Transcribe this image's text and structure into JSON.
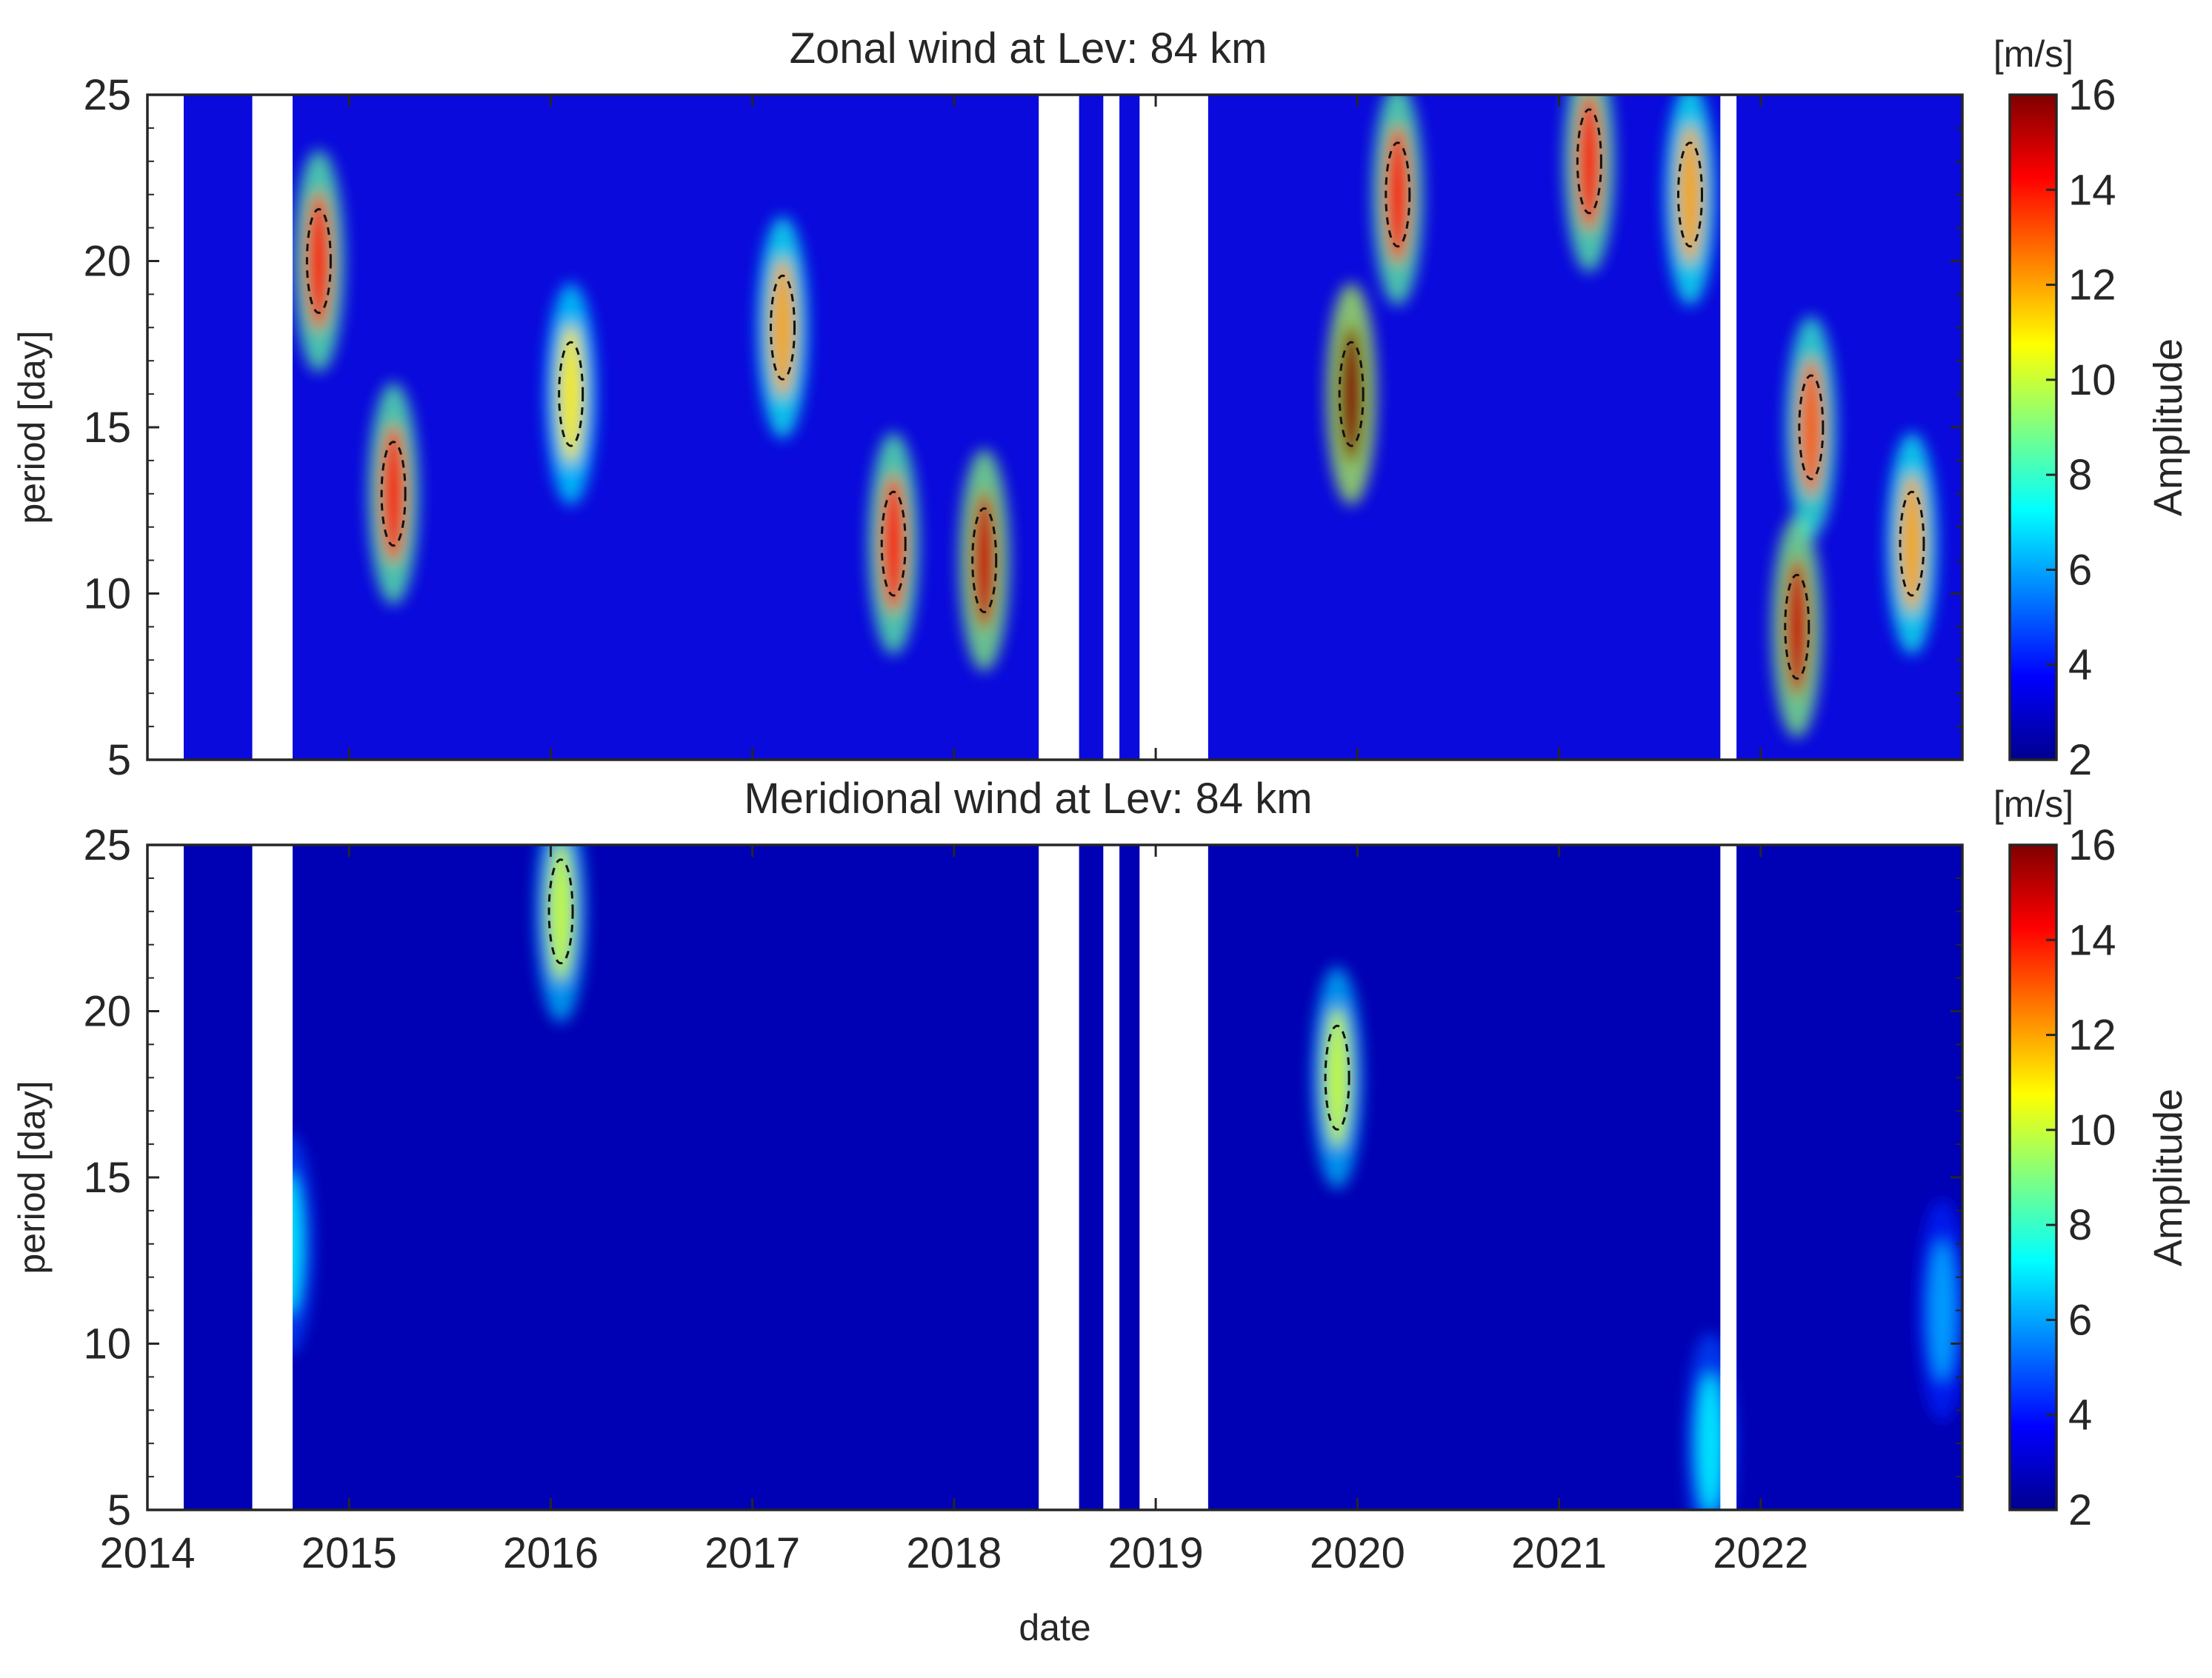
{
  "chart_data": [
    {
      "type": "heatmap",
      "title": "Zonal wind at Lev: 84 km",
      "xlabel": "",
      "ylabel": "period [day]",
      "xlim": [
        2014.0,
        2023.0
      ],
      "ylim": [
        5,
        25
      ],
      "yticks": [
        "5",
        "10",
        "15",
        "20",
        "25"
      ],
      "xticks": [],
      "colorbar": {
        "label": "Amplitude",
        "unit": "[m/s]",
        "range": [
          2,
          16
        ],
        "ticks": [
          "2",
          "4",
          "6",
          "8",
          "10",
          "12",
          "14",
          "16"
        ],
        "colormap": "jet"
      },
      "data_gaps": [
        [
          2014.0,
          2014.18
        ],
        [
          2014.52,
          2014.72
        ],
        [
          2018.42,
          2018.62
        ],
        [
          2018.74,
          2018.82
        ],
        [
          2018.92,
          2019.26
        ],
        [
          2021.8,
          2021.88
        ]
      ],
      "hotspots": [
        {
          "date": 2014.85,
          "period": 20,
          "amplitude": 14
        },
        {
          "date": 2015.22,
          "period": 13,
          "amplitude": 14
        },
        {
          "date": 2016.1,
          "period": 16,
          "amplitude": 11
        },
        {
          "date": 2017.15,
          "period": 18,
          "amplitude": 12
        },
        {
          "date": 2017.7,
          "period": 11.5,
          "amplitude": 14
        },
        {
          "date": 2018.15,
          "period": 11,
          "amplitude": 15
        },
        {
          "date": 2019.97,
          "period": 16,
          "amplitude": 16
        },
        {
          "date": 2020.2,
          "period": 22,
          "amplitude": 14
        },
        {
          "date": 2021.15,
          "period": 23,
          "amplitude": 14
        },
        {
          "date": 2021.65,
          "period": 22,
          "amplitude": 12
        },
        {
          "date": 2022.18,
          "period": 9,
          "amplitude": 15
        },
        {
          "date": 2022.25,
          "period": 15,
          "amplitude": 13
        },
        {
          "date": 2022.75,
          "period": 11.5,
          "amplitude": 12
        }
      ]
    },
    {
      "type": "heatmap",
      "title": "Meridional wind at Lev: 84 km",
      "xlabel": "date",
      "ylabel": "period [day]",
      "xlim": [
        2014.0,
        2023.0
      ],
      "ylim": [
        5,
        25
      ],
      "yticks": [
        "5",
        "10",
        "15",
        "20",
        "25"
      ],
      "xticks": [
        "2014",
        "2015",
        "2016",
        "2017",
        "2018",
        "2019",
        "2020",
        "2021",
        "2022"
      ],
      "colorbar": {
        "label": "Amplitude",
        "unit": "[m/s]",
        "range": [
          2,
          16
        ],
        "ticks": [
          "2",
          "4",
          "6",
          "8",
          "10",
          "12",
          "14",
          "16"
        ],
        "colormap": "jet"
      },
      "data_gaps": [
        [
          2014.0,
          2014.18
        ],
        [
          2014.52,
          2014.72
        ],
        [
          2018.42,
          2018.62
        ],
        [
          2018.74,
          2018.82
        ],
        [
          2018.92,
          2019.26
        ],
        [
          2021.8,
          2021.88
        ]
      ],
      "hotspots": [
        {
          "date": 2016.05,
          "period": 23,
          "amplitude": 10
        },
        {
          "date": 2019.9,
          "period": 18,
          "amplitude": 10
        },
        {
          "date": 2014.7,
          "period": 13,
          "amplitude": 7
        },
        {
          "date": 2021.75,
          "period": 7,
          "amplitude": 7
        },
        {
          "date": 2022.9,
          "period": 11,
          "amplitude": 6
        }
      ]
    }
  ]
}
